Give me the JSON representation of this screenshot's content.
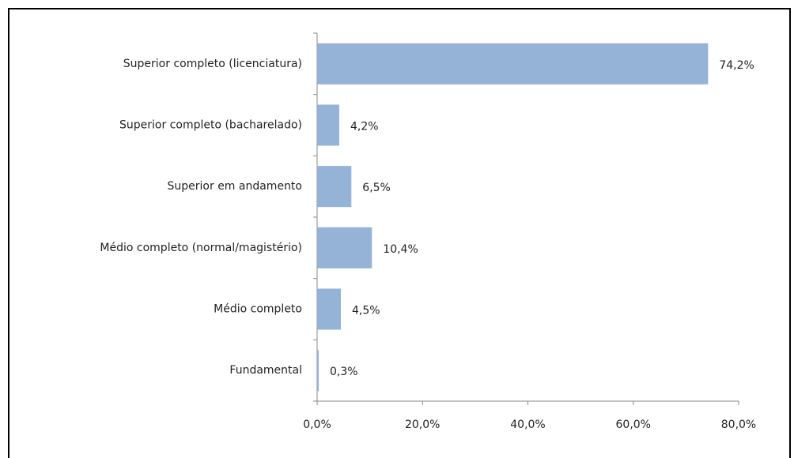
{
  "chart_data": {
    "type": "bar",
    "orientation": "horizontal",
    "categories": [
      "Superior completo (licenciatura)",
      "Superior completo (bacharelado)",
      "Superior em andamento",
      "Médio completo (normal/magistério)",
      "Médio completo",
      "Fundamental"
    ],
    "values": [
      74.2,
      4.2,
      6.5,
      10.4,
      4.5,
      0.3
    ],
    "value_labels": [
      "74,2%",
      "4,2%",
      "6,5%",
      "10,4%",
      "4,5%",
      "0,3%"
    ],
    "color": "#95b3d7",
    "xlim": [
      0,
      80
    ],
    "xticks": [
      {
        "value": 0,
        "label": "0,0%"
      },
      {
        "value": 20,
        "label": "20,0%"
      },
      {
        "value": 40,
        "label": "40,0%"
      },
      {
        "value": 60,
        "label": "60,0%"
      },
      {
        "value": 80,
        "label": "80,0%"
      }
    ],
    "grid": false
  }
}
